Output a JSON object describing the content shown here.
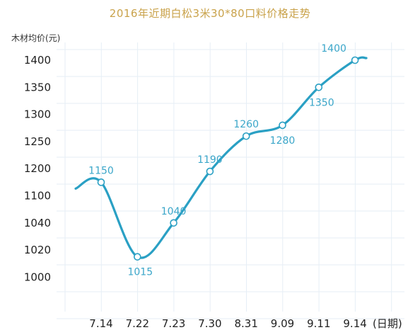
{
  "chart_data": {
    "type": "line",
    "title": "2016年近期白松3米30*80口料价格走势",
    "ylabel": "木材均价(元)",
    "xlabel": "(日期)",
    "x": [
      "7.14",
      "7.22",
      "7.23",
      "7.30",
      "8.31",
      "9.09",
      "9.11",
      "9.14"
    ],
    "y_ticks": [
      "1400",
      "1350",
      "1300",
      "1250",
      "1200",
      "1100",
      "1040",
      "1020",
      "1000"
    ],
    "series": [
      {
        "values": [
          1150,
          1015,
          1040,
          1190,
          1260,
          1280,
          1350,
          1400
        ]
      }
    ],
    "data_labels": [
      "1150",
      "1015",
      "1040",
      "1190",
      "1260",
      "1280",
      "1350",
      "1400"
    ],
    "line_color": "#2aa0c4",
    "label_color": "#3aa6c9",
    "title_color": "#c9a24a",
    "grid": true
  }
}
